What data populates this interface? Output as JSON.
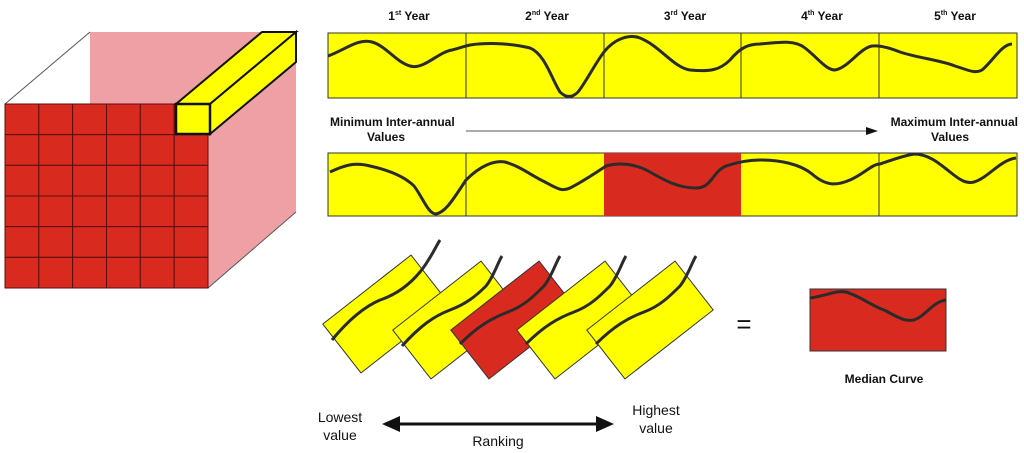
{
  "years": [
    {
      "base": "1",
      "sup": "st",
      "label": "Year"
    },
    {
      "base": "2",
      "sup": "nd",
      "label": "Year"
    },
    {
      "base": "3",
      "sup": "rd",
      "label": "Year"
    },
    {
      "base": "4",
      "sup": "th",
      "label": "Year"
    },
    {
      "base": "5",
      "sup": "th",
      "label": "Year"
    }
  ],
  "min_label_line1": "Minimum Inter-annual",
  "min_label_line2": "Values",
  "max_label_line1": "Maximum Inter-annual",
  "max_label_line2": "Values",
  "equals_sign": "=",
  "median_label": "Median Curve",
  "lowest_line1": "Lowest",
  "lowest_line2": "value",
  "highest_line1": "Highest",
  "highest_line2": "value",
  "ranking_label": "Ranking",
  "colors": {
    "yellow": "#ffff00",
    "red": "#d92a1f",
    "pink": "#eea0a4",
    "curve": "#2b2b2b"
  }
}
